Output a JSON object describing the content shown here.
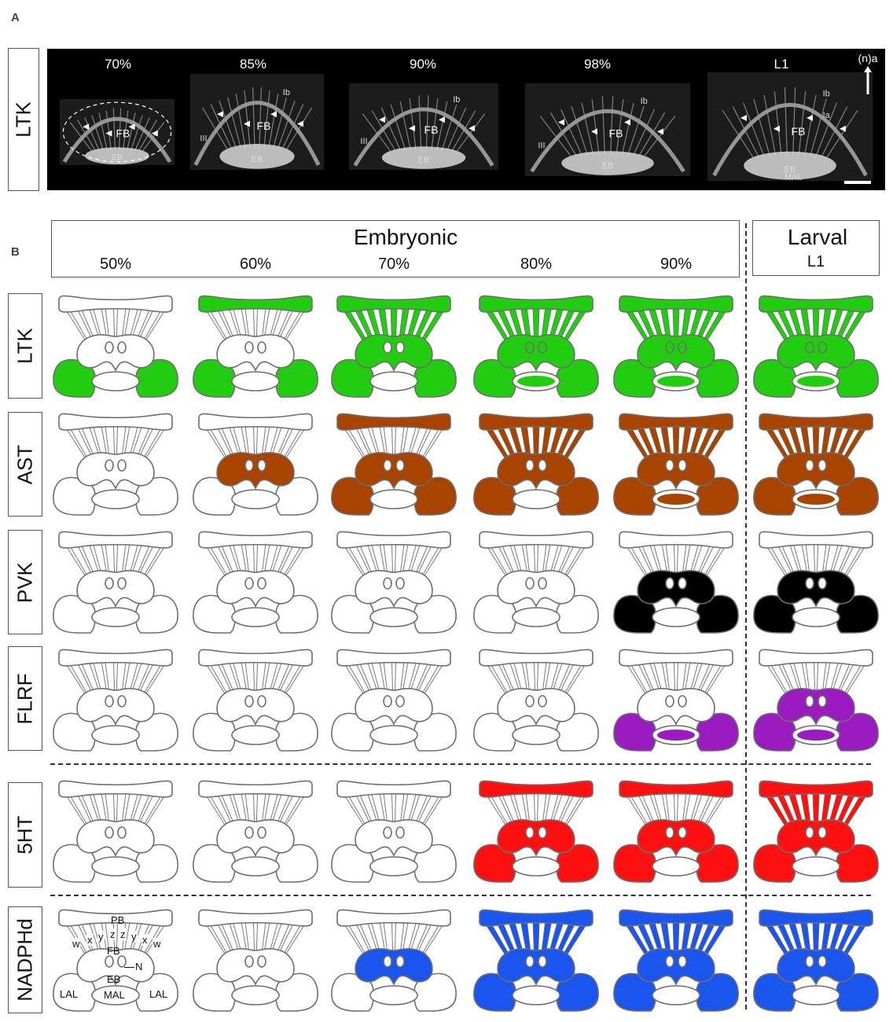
{
  "panel_a": {
    "letter": "A",
    "row_label": "LTK",
    "orientation_label": "(n)a",
    "stages": [
      {
        "label": "70%",
        "regions": [
          "FB",
          "EB"
        ]
      },
      {
        "label": "85%",
        "regions": [
          "FB",
          "EB",
          "Ib",
          "III"
        ]
      },
      {
        "label": "90%",
        "regions": [
          "FB",
          "EB",
          "Ib",
          "III"
        ]
      },
      {
        "label": "98%",
        "regions": [
          "FB",
          "EB",
          "Ib",
          "III"
        ]
      },
      {
        "label": "L1",
        "regions": [
          "FB",
          "EB",
          "Ib",
          "Ia",
          "MAL"
        ]
      }
    ]
  },
  "panel_b": {
    "letter": "B",
    "embryonic_title": "Embryonic",
    "larval_title": "Larval",
    "columns": [
      "50%",
      "60%",
      "70%",
      "80%",
      "90%",
      "L1"
    ],
    "rows": [
      {
        "label": "LTK",
        "color": "#22cc11",
        "fills": [
          [
            "LAL"
          ],
          [
            "PB",
            "LAL"
          ],
          [
            "PB",
            "columns",
            "FB",
            "LAL"
          ],
          [
            "PB",
            "columns",
            "FB",
            "N",
            "EB",
            "LAL"
          ],
          [
            "PB",
            "columns",
            "FB",
            "N",
            "EB",
            "LAL"
          ],
          [
            "PB",
            "columns",
            "FB",
            "N",
            "EB",
            "LAL"
          ]
        ]
      },
      {
        "label": "AST",
        "color": "#a84300",
        "fills": [
          [],
          [
            "FB"
          ],
          [
            "PB",
            "FB",
            "LAL"
          ],
          [
            "PB",
            "columns",
            "FB",
            "LAL"
          ],
          [
            "PB",
            "columns",
            "FB",
            "EB",
            "LAL"
          ],
          [
            "PB",
            "columns",
            "FB",
            "EB",
            "LAL"
          ]
        ]
      },
      {
        "label": "PVK",
        "color": "#000000",
        "fills": [
          [],
          [],
          [],
          [],
          [
            "FB",
            "LAL"
          ],
          [
            "FB",
            "LAL"
          ]
        ]
      },
      {
        "label": "FLRF",
        "color": "#9a1bbf",
        "fills": [
          [],
          [],
          [],
          [],
          [
            "EB",
            "LAL"
          ],
          [
            "FB",
            "EB",
            "LAL"
          ]
        ]
      },
      {
        "label": "5HT",
        "color": "#ff1010",
        "fills": [
          [],
          [],
          [],
          [
            "PB",
            "FB",
            "LAL"
          ],
          [
            "PB",
            "FB",
            "LAL"
          ],
          [
            "PB",
            "columns",
            "FB",
            "LAL"
          ]
        ]
      },
      {
        "label": "NADPHd",
        "color": "#1a55ee",
        "fills": [
          [],
          [],
          [
            "FB"
          ],
          [
            "PB",
            "columns",
            "FB",
            "LAL"
          ],
          [
            "PB",
            "columns",
            "FB",
            "LAL"
          ],
          [
            "PB",
            "columns",
            "FB",
            "LAL"
          ]
        ]
      }
    ],
    "legend_labels": {
      "pb": "PB",
      "fb": "FB",
      "eb": "EB",
      "n": "N",
      "lal_left": "LAL",
      "lal_right": "LAL",
      "mal": "MAL",
      "column_letters": [
        "w",
        "x",
        "y",
        "z",
        "z",
        "y",
        "x",
        "w"
      ]
    }
  }
}
